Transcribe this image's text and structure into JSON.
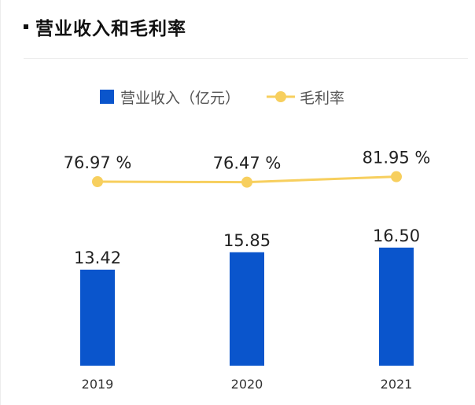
{
  "header": {
    "title": "营业收入和毛利率"
  },
  "legend": {
    "items": [
      {
        "label": "营业收入（亿元）",
        "color": "#0a55cc",
        "shape": "square"
      },
      {
        "label": "毛利率",
        "color": "#f7cf5e",
        "shape": "line-circle"
      }
    ]
  },
  "chart_data": {
    "type": "bar",
    "categories": [
      "2019",
      "2020",
      "2021"
    ],
    "series": [
      {
        "name": "营业收入（亿元）",
        "type": "bar",
        "values": [
          13.42,
          15.85,
          16.5
        ],
        "labels": [
          "13.42",
          "15.85",
          "16.50"
        ],
        "color": "#0a55cc"
      },
      {
        "name": "毛利率",
        "type": "line",
        "values": [
          76.97,
          76.47,
          81.95
        ],
        "labels": [
          "76.97 %",
          "76.47 %",
          "81.95 %"
        ],
        "color": "#f7cf5e"
      }
    ],
    "legend_position": "top",
    "grid": false
  }
}
